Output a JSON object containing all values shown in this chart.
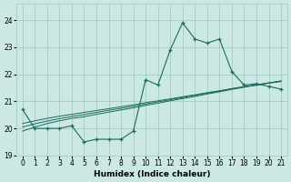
{
  "xlabel": "Humidex (Indice chaleur)",
  "bg_color": "#cce8e4",
  "grid_color": "#aacfca",
  "line_color": "#1a6b5a",
  "xlim": [
    -0.5,
    21.5
  ],
  "ylim": [
    19.0,
    24.6
  ],
  "yticks": [
    19,
    20,
    21,
    22,
    23,
    24
  ],
  "xticks": [
    0,
    1,
    2,
    3,
    4,
    5,
    6,
    7,
    8,
    9,
    10,
    11,
    12,
    13,
    14,
    15,
    16,
    17,
    18,
    19,
    20,
    21
  ],
  "main_line_x": [
    0,
    1,
    2,
    3,
    4,
    5,
    6,
    7,
    8,
    9,
    10,
    11,
    12,
    13,
    14,
    15,
    16,
    17,
    18,
    19,
    20,
    21
  ],
  "main_line_y": [
    20.7,
    20.0,
    20.0,
    20.0,
    20.1,
    19.5,
    19.6,
    19.6,
    19.6,
    19.9,
    21.8,
    21.6,
    22.9,
    23.9,
    23.3,
    23.15,
    23.3,
    22.1,
    21.6,
    21.65,
    21.55,
    21.45
  ],
  "trend_lines": [
    [
      19.9,
      20.05,
      20.18,
      20.28,
      20.37,
      20.43,
      20.52,
      20.6,
      20.68,
      20.76,
      20.85,
      20.93,
      21.02,
      21.1,
      21.18,
      21.27,
      21.35,
      21.44,
      21.52,
      21.6,
      21.68,
      21.75
    ],
    [
      20.05,
      20.17,
      20.27,
      20.36,
      20.44,
      20.51,
      20.59,
      20.67,
      20.74,
      20.82,
      20.9,
      20.98,
      21.06,
      21.14,
      21.22,
      21.3,
      21.38,
      21.46,
      21.54,
      21.61,
      21.68,
      21.75
    ],
    [
      20.18,
      20.28,
      20.37,
      20.45,
      20.52,
      20.59,
      20.66,
      20.73,
      20.8,
      20.87,
      20.95,
      21.02,
      21.09,
      21.17,
      21.24,
      21.32,
      21.39,
      21.47,
      21.54,
      21.6,
      21.67,
      21.73
    ]
  ]
}
